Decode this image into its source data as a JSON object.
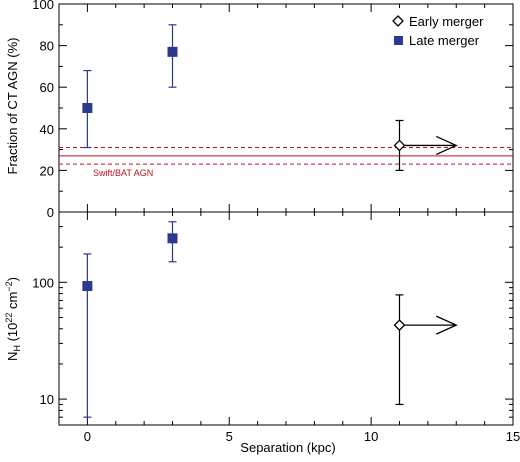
{
  "chart_data": [
    {
      "type": "scatter",
      "panel": "top",
      "ylabel": "Fraction of CT AGN (%)",
      "xlim": [
        -1,
        15
      ],
      "ylim": [
        0,
        100
      ],
      "yticks": [
        0,
        20,
        40,
        60,
        80,
        100
      ],
      "series": [
        {
          "name": "Early merger",
          "marker": "open-diamond",
          "color": "#000000",
          "points": [
            {
              "x": 11,
              "y": 32,
              "y_low": 20,
              "y_high": 44,
              "lower_limit_x": true
            }
          ]
        },
        {
          "name": "Late merger",
          "marker": "filled-square",
          "color": "#2b3a8c",
          "points": [
            {
              "x": 0,
              "y": 50,
              "y_low": 31,
              "y_high": 68
            },
            {
              "x": 3,
              "y": 77,
              "y_low": 60,
              "y_high": 90
            }
          ]
        }
      ],
      "reference_band": {
        "label": "Swift/BAT AGN",
        "color": "#c0121d",
        "value": 27,
        "low": 23,
        "high": 31
      },
      "legend_position": "top-right"
    },
    {
      "type": "scatter",
      "panel": "bottom",
      "ylabel_main": "N",
      "ylabel_sub": "H",
      "ylabel_unit": " (10",
      "ylabel_exp1": "22",
      "ylabel_unit2": " cm",
      "ylabel_exp2": "−2",
      "ylabel_close": ")",
      "xlabel": "Separation (kpc)",
      "xlim": [
        -1,
        15
      ],
      "xticks": [
        0,
        5,
        10,
        15
      ],
      "yscale": "log",
      "ylim": [
        6,
        400
      ],
      "yticks": [
        10,
        100
      ],
      "series": [
        {
          "name": "Early merger",
          "marker": "open-diamond",
          "color": "#000000",
          "points": [
            {
              "x": 11,
              "y": 43,
              "y_low": 9,
              "y_high": 78,
              "lower_limit_x": true
            }
          ]
        },
        {
          "name": "Late merger",
          "marker": "filled-square",
          "color": "#2b3a8c",
          "points": [
            {
              "x": 0,
              "y": 93,
              "y_low": 7,
              "y_high": 175
            },
            {
              "x": 3,
              "y": 238,
              "y_low": 150,
              "y_high": 330
            }
          ]
        }
      ]
    }
  ]
}
